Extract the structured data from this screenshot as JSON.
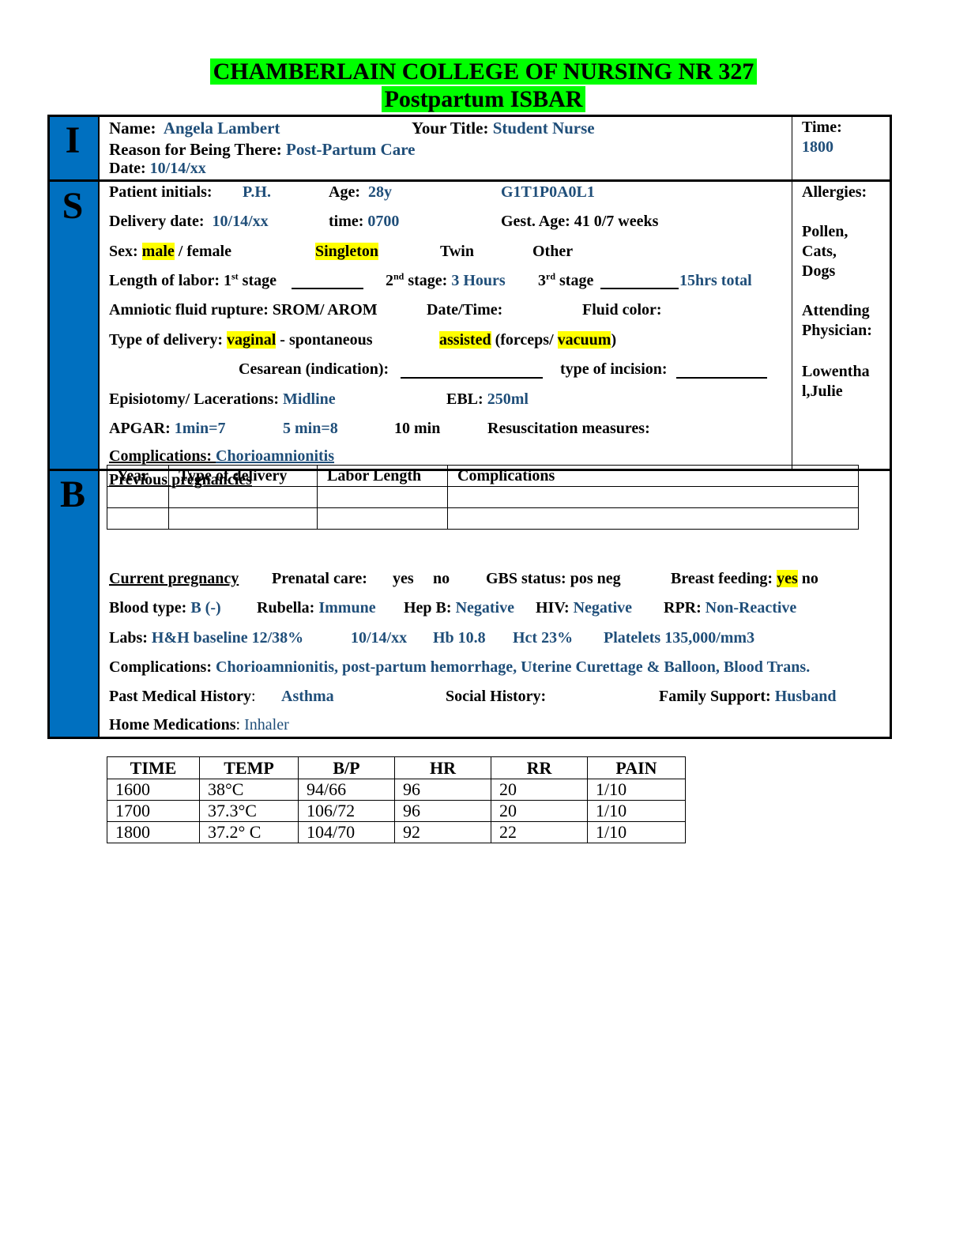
{
  "header": {
    "line1": "CHAMBERLAIN COLLEGE OF NURSING NR 327",
    "line2": "Postpartum ISBAR"
  },
  "section_letters": {
    "i": "I",
    "s": "S",
    "b": "B"
  },
  "intro": {
    "name_label": "Name:",
    "name_value": "Angela Lambert",
    "title_label": "Your Title:",
    "title_value": "Student Nurse",
    "reason_label": "Reason for Being There:",
    "reason_value": "Post-Partum Care",
    "date_label": "Date:",
    "date_value": "10/14/xx",
    "time_label": "Time:",
    "time_value": "1800"
  },
  "situation": {
    "initials_label": "Patient initials:",
    "initials_value": "P.H.",
    "age_label": "Age:",
    "age_value": "28y",
    "gtpal": "G1T1P0A0L1",
    "delivery_date_label": "Delivery date:",
    "delivery_date_value": "10/14/xx",
    "time_label": "time:",
    "time_value": "0700",
    "gest_age": "Gest. Age: 41  0/7 weeks",
    "sex_label": "Sex:",
    "sex_male": "male",
    "sex_rest": " / female",
    "singleton": "Singleton",
    "twin": "Twin",
    "other": "Other",
    "labor_label": "Length of labor: 1",
    "labor_st": "st",
    "labor_stage1": " stage",
    "stage2_pre": "2",
    "stage2_nd": "nd",
    "stage2_label": " stage: ",
    "stage2_value": "3 Hours",
    "stage3_pre": "3",
    "stage3_rd": "rd",
    "stage3_label": " stage",
    "labor_total": "15hrs total",
    "amniotic": "Amniotic fluid rupture: SROM/ AROM",
    "date_time": "Date/Time:",
    "fluid_color": "Fluid color:",
    "delivery_type_label": "Type of delivery: ",
    "vaginal": "vaginal",
    "spontaneous": " -  spontaneous",
    "assisted": "assisted",
    "forceps": " (forceps/ ",
    "vacuum": "vacuum",
    "close_paren": ")",
    "cesarean": "Cesarean (indication):",
    "incision": "type of incision:",
    "episiotomy_label": "Episiotomy/ Lacerations: ",
    "episiotomy_value": "Midline",
    "ebl_label": "EBL: ",
    "ebl_value": "250ml",
    "apgar_label": "APGAR: ",
    "apgar_1": "1min=7",
    "apgar_5": "5 min=8",
    "apgar_10": "10 min",
    "resus": "Resuscitation measures:",
    "complications_label": "Complications: ",
    "complications_value": "Chorioamnionitis",
    "allergies_label": "Allergies:",
    "allergies_value": [
      "Pollen,",
      "Cats,",
      "Dogs"
    ],
    "attending_label": [
      "Attending",
      "Physician:"
    ],
    "attending_value": [
      "Lowentha",
      "l,Julie"
    ]
  },
  "background": {
    "previous_label": "Previous pregnancies",
    "prev_headers": [
      "Year",
      "Type of delivery",
      "Labor Length",
      "Complications"
    ],
    "current_label": "Current pregnancy",
    "prenatal": "Prenatal care:",
    "prenatal_yes": "yes",
    "prenatal_no": "no",
    "gbs": "GBS status: pos   neg",
    "breast_label": "Breast feeding: ",
    "breast_yes": "yes",
    "breast_no": " no",
    "blood_label": "Blood type: ",
    "blood_value": "B (-)",
    "rubella_label": "Rubella: ",
    "rubella_value": "Immune",
    "hepb_label": "Hep B: ",
    "hepb_value": "Negative",
    "hiv_label": "HIV: ",
    "hiv_value": "Negative",
    "rpr_label": "RPR: ",
    "rpr_value": "Non-Reactive",
    "labs_label": "Labs: ",
    "labs_baseline": "H&H baseline 12/38%",
    "labs_date": "10/14/xx",
    "labs_hb": "Hb 10.8",
    "labs_hct": "Hct 23%",
    "labs_plt": "Platelets 135,000/mm3",
    "comp_label": "Complications: ",
    "comp_value": "Chorioamnionitis, post-partum hemorrhage, Uterine Curettage & Balloon, Blood Trans.",
    "pmh_label": "Past Medical History",
    "pmh_colon": ":",
    "pmh_value": "Asthma",
    "social_label": "Social History:",
    "family_label": "Family Support: ",
    "family_value": "Husband",
    "meds_label": "Home Medications",
    "meds_colon": ": ",
    "meds_value": "Inhaler"
  },
  "vitals": {
    "headers": [
      "TIME",
      "TEMP",
      "B/P",
      "HR",
      "RR",
      "PAIN"
    ],
    "rows": [
      [
        "1600",
        "38°C",
        "94/66",
        "96",
        "20",
        "1/10"
      ],
      [
        "1700",
        "37.3°C",
        "106/72",
        "96",
        "20",
        "1/10"
      ],
      [
        "1800",
        "37.2° C",
        "104/70",
        "92",
        "22",
        "1/10"
      ]
    ]
  }
}
